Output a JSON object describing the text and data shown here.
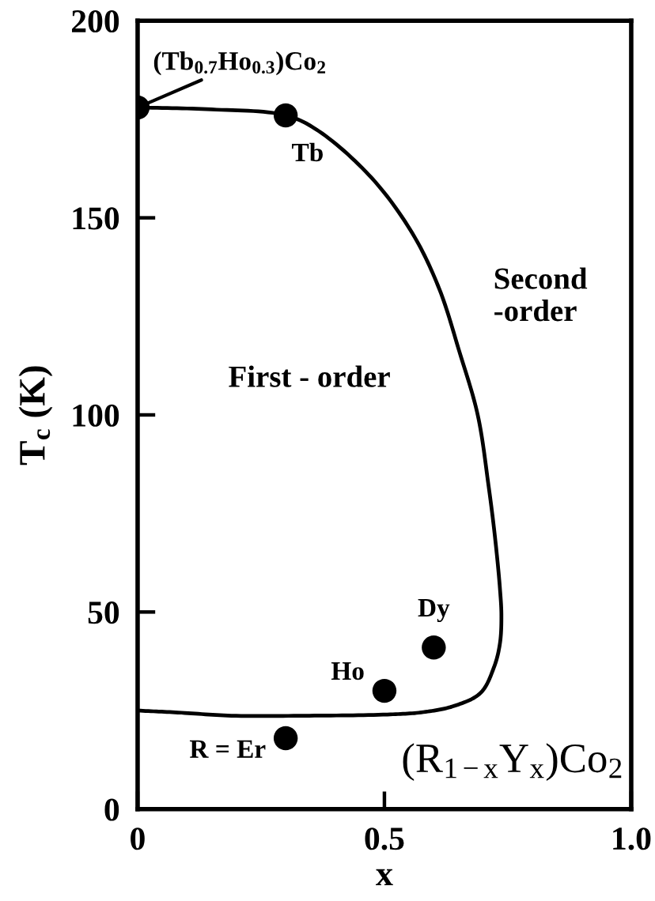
{
  "chart_data": {
    "type": "scatter",
    "xlabel": "x",
    "ylabel": "T$_{c}$ (K)",
    "xlim": [
      0,
      1
    ],
    "ylim": [
      0,
      200
    ],
    "xticks": [
      0,
      0.5,
      {
        "value": 1,
        "label": "1.0"
      }
    ],
    "yticks": [
      0,
      50,
      100,
      150,
      200
    ],
    "series": [
      {
        "type": "line",
        "color": "#000000",
        "line_style": "solid",
        "marker": "none",
        "x": [
          0,
          0.15,
          0.3,
          0.367,
          0.475,
          0.557,
          0.611,
          0.652,
          0.689,
          0.711,
          0.724,
          0.734,
          0.737,
          0.734,
          0.722,
          0.695,
          0.642,
          0.579,
          0.506,
          0.348,
          0.19,
          0.082,
          0
        ],
        "values": [
          178,
          177.5,
          176,
          172,
          160,
          146,
          132,
          116,
          100,
          82,
          69,
          56,
          49,
          42,
          36,
          29.5,
          26.2,
          24.6,
          24,
          23.7,
          23.7,
          24.5,
          25
        ]
      },
      {
        "color": "#000000",
        "marker": "circle",
        "x": [
          0,
          0.3,
          0.3,
          0.5,
          0.6
        ],
        "values": [
          178,
          176,
          18,
          30,
          41
        ]
      }
    ],
    "annotations": [
      {
        "text": "(Tb$_{0.7}$Ho$_{0.3}$)Co$_{2}$",
        "x": 0,
        "y": 178
      },
      {
        "text": "Tb",
        "x": 0.3,
        "y": 176
      },
      "Second\n-order",
      "First - order",
      {
        "text": "Dy",
        "x": 0.6,
        "y": 41
      },
      {
        "text": "Ho",
        "x": 0.5,
        "y": 30
      },
      {
        "text": "R = Er",
        "x": 0.3,
        "y": 18
      },
      "(R$_{1−x}$Y$_{x}$)Co$_{2}$"
    ]
  }
}
